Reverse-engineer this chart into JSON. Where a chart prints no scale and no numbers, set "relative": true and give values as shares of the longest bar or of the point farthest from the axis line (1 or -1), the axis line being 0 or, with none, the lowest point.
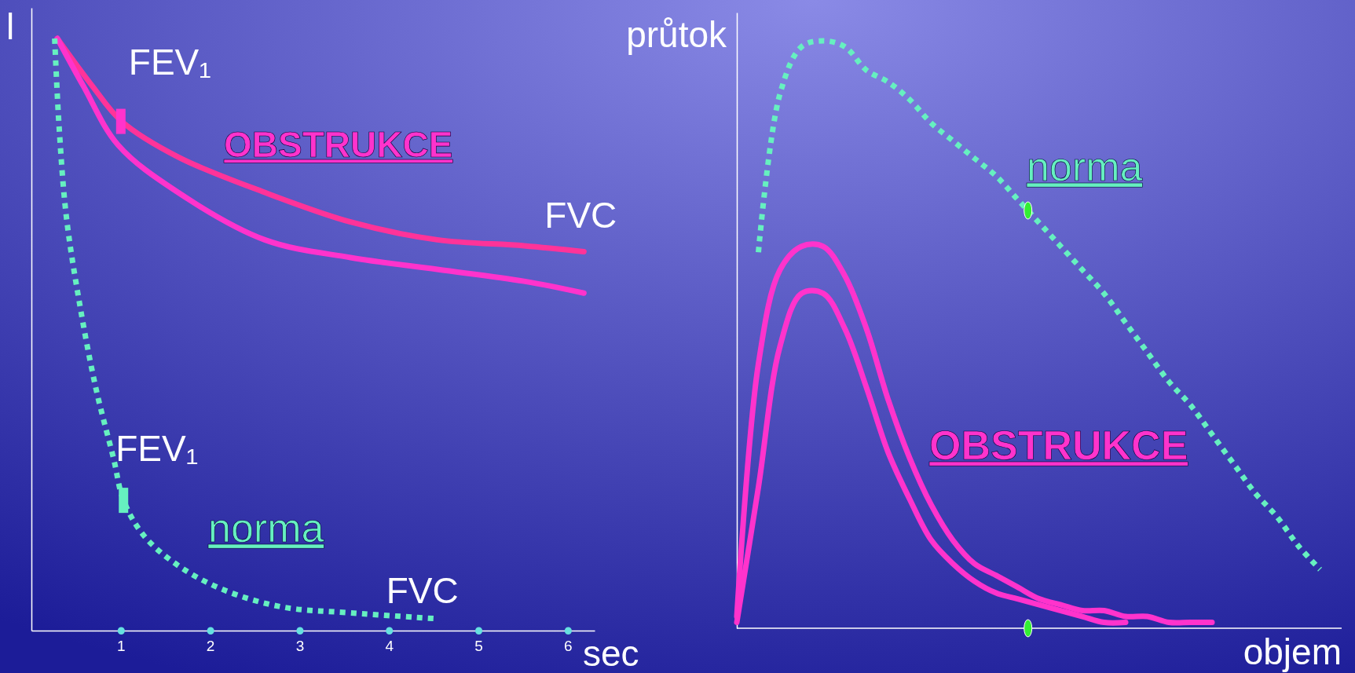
{
  "chart_data": [
    {
      "type": "line",
      "xlabel": "sec",
      "ylabel": "l",
      "relative": true,
      "xlim": [
        0,
        6.3
      ],
      "xticks": [
        1,
        2,
        3,
        4,
        5,
        6
      ],
      "annotations": [
        {
          "text": "FEV₁",
          "x": 1,
          "y": 0.86
        },
        "OBSTRUKCE",
        {
          "text": "FVC",
          "x": 6.18,
          "y": 0.64
        },
        {
          "text": "FEV₁",
          "x": 1.03,
          "y": 0.22
        },
        "norma",
        {
          "text": "FVC",
          "x": 4.54,
          "y": 0.02
        }
      ],
      "series": [
        {
          "color": "#ff3399",
          "line_style": "solid",
          "x": [
            0.29,
            0.68,
            1.01,
            1.64,
            2.61,
            3.57,
            4.54,
            5.51,
            6.18
          ],
          "values": [
            1.0,
            0.92,
            0.86,
            0.8,
            0.74,
            0.69,
            0.66,
            0.65,
            0.64
          ]
        },
        {
          "color": "#ff33cc",
          "line_style": "solid",
          "x": [
            0.29,
            0.58,
            0.97,
            1.64,
            2.61,
            3.57,
            4.54,
            5.51,
            6.18
          ],
          "values": [
            1.0,
            0.92,
            0.82,
            0.74,
            0.66,
            0.63,
            0.61,
            0.59,
            0.57
          ]
        },
        {
          "color": "#66f0c0",
          "line_style": "dotted",
          "x": [
            0.26,
            0.31,
            0.39,
            0.53,
            0.72,
            0.92,
            1.03,
            1.26,
            1.64,
            2.13,
            2.8,
            3.57,
            4.54
          ],
          "values": [
            1.0,
            0.85,
            0.7,
            0.56,
            0.41,
            0.29,
            0.22,
            0.16,
            0.11,
            0.07,
            0.04,
            0.03,
            0.02
          ]
        }
      ]
    },
    {
      "type": "line",
      "xlabel": "objem",
      "ylabel": "průtok",
      "relative": true,
      "categories": [
        null,
        null,
        null,
        null,
        null,
        null,
        null,
        null,
        null,
        null,
        null,
        null,
        null,
        null,
        null,
        null,
        null,
        null,
        null,
        null,
        null,
        null,
        null,
        null,
        null,
        null,
        null,
        null,
        null
      ],
      "annotations": [
        "norma",
        "OBSTRUKCE"
      ],
      "series": [
        {
          "color": "#66f0c0",
          "line_style": "dotted",
          "values": [
            null,
            0.64,
            0.91,
            0.99,
            1.0,
            0.99,
            0.95,
            0.93,
            0.9,
            0.86,
            0.83,
            0.8,
            0.77,
            0.73,
            0.69,
            0.65,
            0.61,
            0.57,
            0.52,
            0.47,
            0.42,
            0.38,
            0.33,
            0.28,
            0.23,
            0.19,
            0.14,
            0.1,
            null
          ]
        },
        {
          "color": "#ff33cc",
          "line_style": "solid",
          "values": [
            0.02,
            0.45,
            0.61,
            0.65,
            0.65,
            0.6,
            0.51,
            0.39,
            0.29,
            0.21,
            0.15,
            0.11,
            0.09,
            0.07,
            0.05,
            0.04,
            0.03,
            0.03,
            0.02,
            0.02,
            0.01,
            0.01,
            0.01,
            null,
            null,
            null,
            null,
            null,
            null
          ]
        },
        {
          "color": "#ff33cc",
          "line_style": "solid",
          "values": [
            0.01,
            0.24,
            0.48,
            0.57,
            0.57,
            0.51,
            0.41,
            0.3,
            0.22,
            0.15,
            0.11,
            0.08,
            0.06,
            0.05,
            0.04,
            0.03,
            0.02,
            0.01,
            0.01,
            null,
            null,
            null,
            null,
            null,
            null,
            null,
            null,
            null,
            null
          ]
        }
      ]
    }
  ]
}
